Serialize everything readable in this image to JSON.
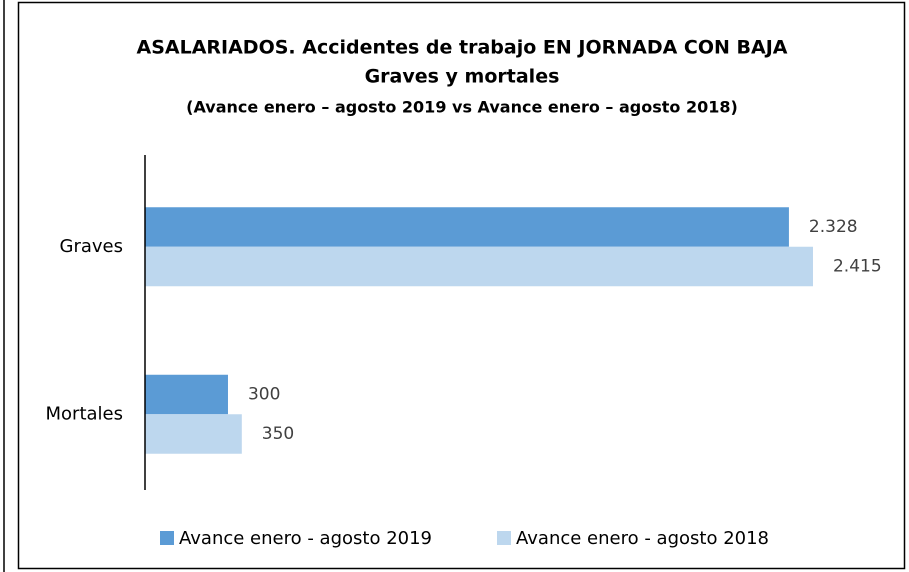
{
  "chart_data": {
    "type": "hbar",
    "title": [
      "ASALARIADOS. Accidentes de trabajo EN JORNADA CON BAJA",
      "Graves y mortales",
      "(Avance enero – agosto 2019 vs Avance enero – agosto 2018)"
    ],
    "categories": [
      "Graves",
      "Mortales"
    ],
    "series": [
      {
        "name": "Avance enero - agosto 2019",
        "color": "#5b9bd5",
        "values": [
          2328,
          300
        ],
        "value_labels": [
          "2.328",
          "300"
        ]
      },
      {
        "name": "Avance enero - agosto 2018",
        "color": "#bdd7ee",
        "values": [
          2415,
          350
        ],
        "value_labels": [
          "2.415",
          "350"
        ]
      }
    ],
    "xlim": [
      0,
      2500
    ],
    "legend": "bottom"
  }
}
